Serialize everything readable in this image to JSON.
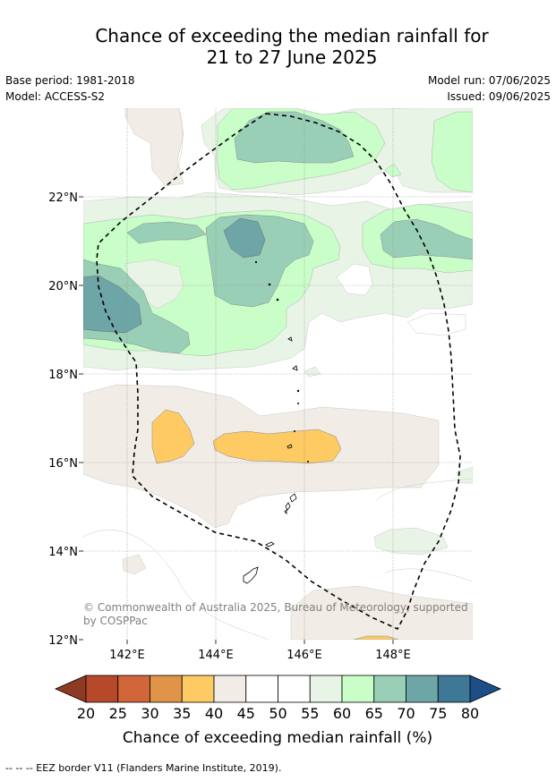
{
  "title": {
    "line1": "Chance of exceeding the median rainfall for",
    "line2": "21 to 27 June 2025"
  },
  "meta": {
    "base_period": "Base period: 1981-2018",
    "model": "Model: ACCESS-S2",
    "model_run": "Model run: 07/06/2025",
    "issued": "Issued: 09/06/2025"
  },
  "map": {
    "lat_ticks": [
      "22°N",
      "20°N",
      "18°N",
      "16°N",
      "14°N",
      "12°N"
    ],
    "lon_ticks": [
      "142°E",
      "144°E",
      "146°E",
      "148°E"
    ],
    "copyright": "© Commonwealth of Australia 2025, Bureau of Meteorology, supported by COSPPac"
  },
  "colorbar": {
    "labels": [
      "20",
      "25",
      "30",
      "35",
      "40",
      "45",
      "50",
      "55",
      "60",
      "65",
      "70",
      "75",
      "80"
    ],
    "colors": [
      "#b5492a",
      "#d0663a",
      "#e0944a",
      "#fdca64",
      "#f1ede6",
      "#ffffff",
      "#ffffff",
      "#e8f5e6",
      "#c9fec8",
      "#9acfb7",
      "#6ea6a8",
      "#3f7896"
    ],
    "under_color": "#8e3a25",
    "over_color": "#1d4e85",
    "title": "Chance of exceeding median rainfall (%)"
  },
  "footnote": "--  --  -- EEZ border V11 (Flanders Marine Institute, 2019)."
}
